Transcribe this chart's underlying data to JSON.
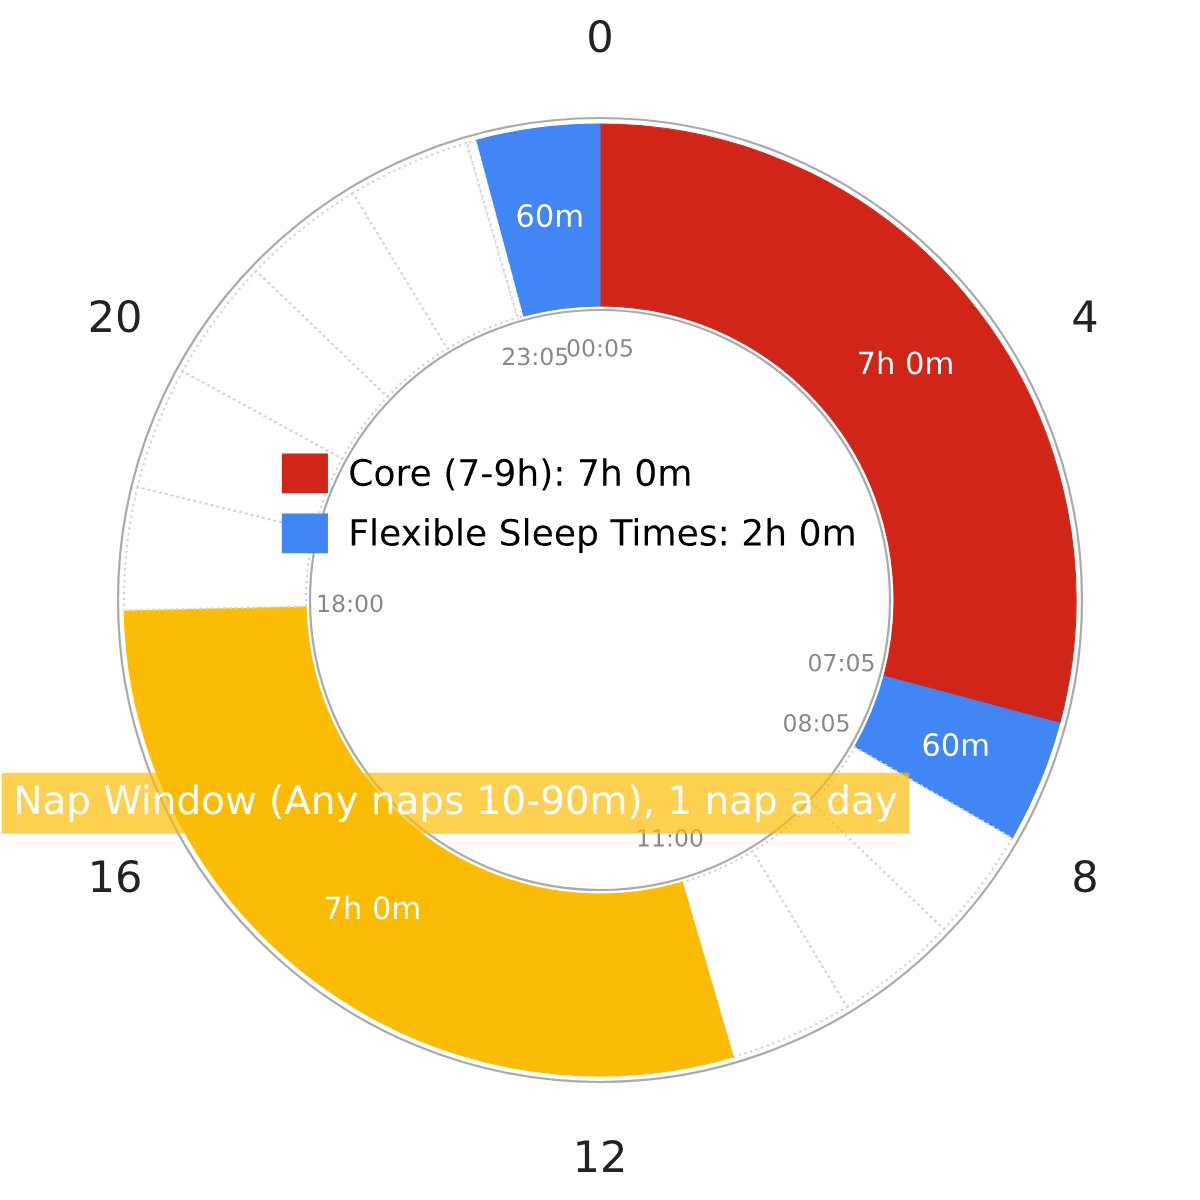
{
  "chart_data": {
    "type": "donut",
    "categories": [
      "Core (7-9h): 7h 0m",
      "Flexible Sleep Times: 2h 0m",
      null,
      null,
      null,
      null,
      null,
      null,
      null,
      null,
      null,
      null,
      null
    ],
    "values": [
      420,
      60,
      55,
      60,
      60,
      420,
      60,
      60,
      60,
      60,
      60,
      5,
      60
    ],
    "colors": [
      "#d2251a",
      "#4285f4",
      "#ffffff",
      "#ffffff",
      "#ffffff",
      "#fbbc05",
      "#ffffff",
      "#ffffff",
      "#ffffff",
      "#ffffff",
      "#ffffff",
      "#ffffff",
      "#4285f4"
    ],
    "value_labels": [
      "7h 0m",
      "60m",
      null,
      null,
      null,
      "7h 0m",
      null,
      null,
      null,
      null,
      null,
      null,
      "60m"
    ],
    "annotations": [
      "0",
      "4",
      "8",
      "12",
      "16",
      "20",
      "00:05",
      "07:05",
      "08:05",
      "11:00",
      "18:00",
      "23:05",
      "Nap Window (Any naps 10-90m), 1 nap a day"
    ],
    "legend": "center"
  }
}
